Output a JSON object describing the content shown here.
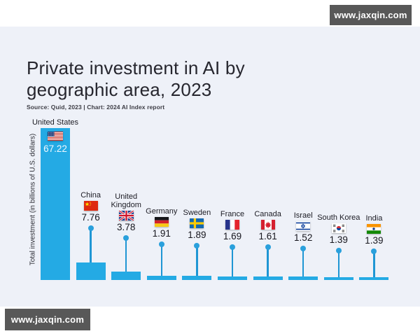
{
  "watermark": {
    "text": "www.jaxqin.com",
    "bg": "#585858",
    "fg": "#ffffff"
  },
  "header": {
    "title": "Private investment in AI by geographic area, 2023",
    "source": "Source: Quid, 2023 | Chart: 2024 AI Index report"
  },
  "chart_data": {
    "type": "bar",
    "title": "Private investment in AI by geographic area, 2023",
    "ylabel": "Total investment (in billions of U.S. dollars)",
    "categories": [
      "United States",
      "China",
      "United Kingdom",
      "Germany",
      "Sweden",
      "France",
      "Canada",
      "Israel",
      "South Korea",
      "India"
    ],
    "values": [
      67.22,
      7.76,
      3.78,
      1.91,
      1.89,
      1.69,
      1.61,
      1.52,
      1.39,
      1.39
    ],
    "value_labels": [
      "67.22",
      "7.76",
      "3.78",
      "1.91",
      "1.89",
      "1.69",
      "1.61",
      "1.52",
      "1.39",
      "1.39"
    ],
    "flag_icons": [
      "us-flag-icon",
      "china-flag-icon",
      "uk-flag-icon",
      "germany-flag-icon",
      "sweden-flag-icon",
      "france-flag-icon",
      "canada-flag-icon",
      "israel-flag-icon",
      "south-korea-flag-icon",
      "india-flag-icon"
    ],
    "ylim": [
      0,
      70
    ],
    "grid": false,
    "legend": false,
    "colors": {
      "bar": "#24aae4",
      "stem": "#1f96d4",
      "dot": "#2aa0dc",
      "panel_background": "#eef1f8",
      "us_value_text": "#eef8ff"
    }
  }
}
